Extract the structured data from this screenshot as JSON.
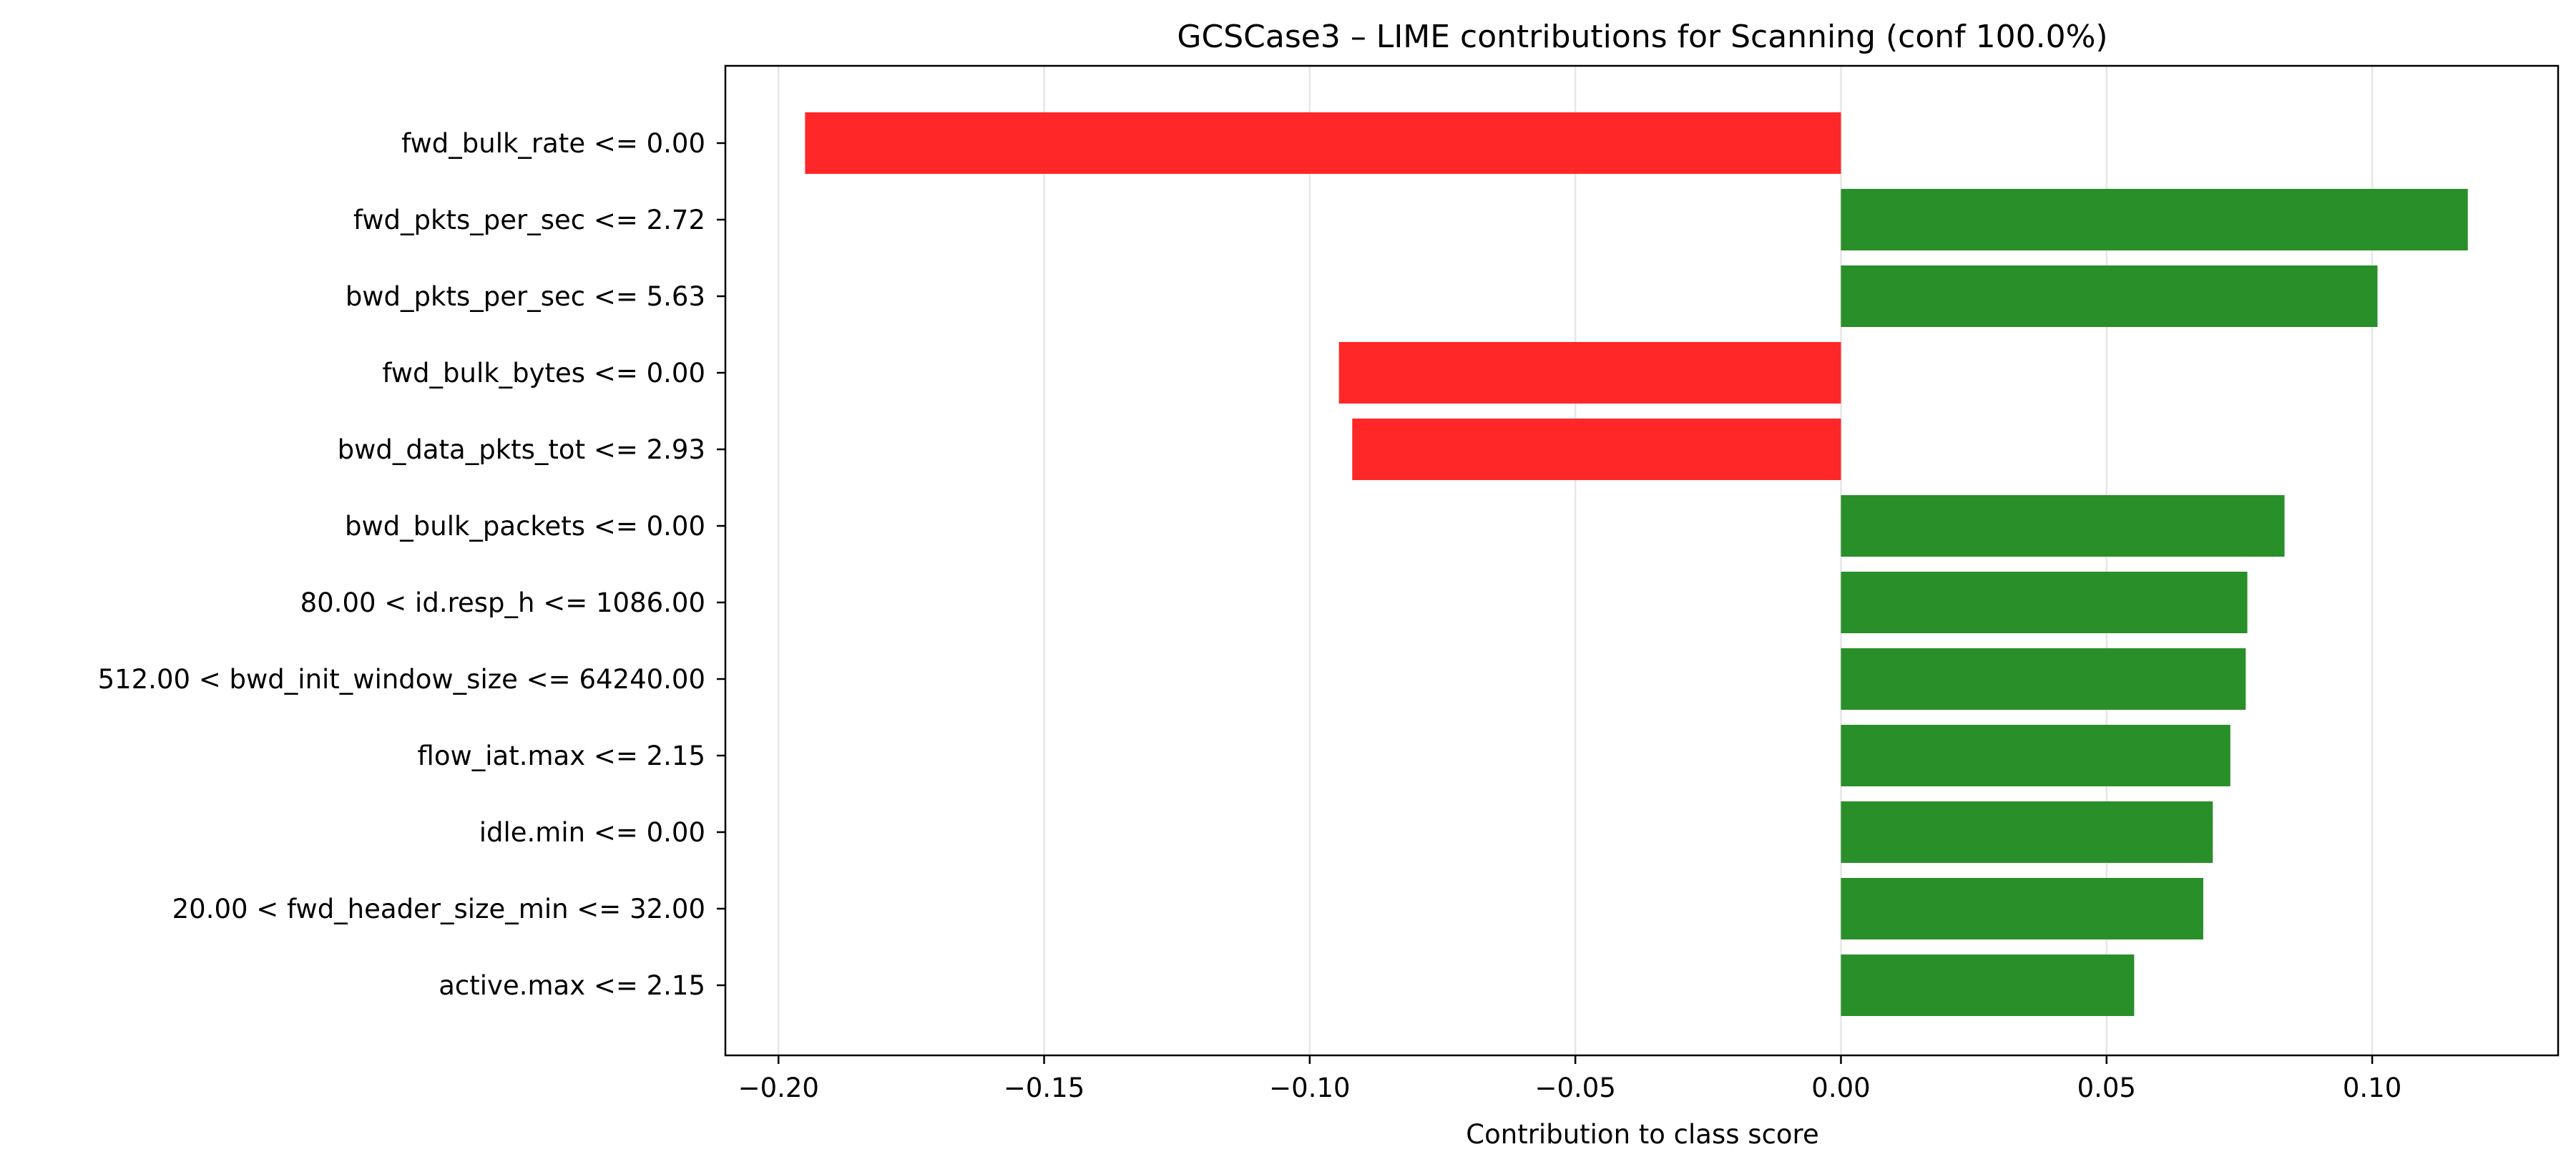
{
  "chart_data": {
    "type": "bar",
    "orientation": "horizontal",
    "title": "GCSCase3 – LIME contributions for Scanning (conf 100.0%)",
    "xlabel": "Contribution to class score",
    "ylabel": "",
    "xlim": [
      -0.21,
      0.135
    ],
    "grid": "vertical",
    "x_ticks": [
      -0.2,
      -0.15,
      -0.1,
      -0.05,
      0.0,
      0.05,
      0.1
    ],
    "x_tick_labels": [
      "−0.20",
      "−0.15",
      "−0.10",
      "−0.05",
      "0.00",
      "0.05",
      "0.10"
    ],
    "colors": {
      "positive": "#228b22",
      "negative": "#ff2020"
    },
    "categories": [
      "fwd_bulk_rate <= 0.00",
      "fwd_pkts_per_sec <= 2.72",
      "bwd_pkts_per_sec <= 5.63",
      "fwd_bulk_bytes <= 0.00",
      "bwd_data_pkts_tot <= 2.93",
      "bwd_bulk_packets <= 0.00",
      "80.00 < id.resp_h <= 1086.00",
      "512.00 < bwd_init_window_size <= 64240.00",
      "flow_iat.max <= 2.15",
      "idle.min <= 0.00",
      "20.00 < fwd_header_size_min <= 32.00",
      "active.max <= 2.15"
    ],
    "values": [
      -0.195,
      0.118,
      0.101,
      -0.0945,
      -0.092,
      0.0835,
      0.0765,
      0.0762,
      0.0733,
      0.07,
      0.0682,
      0.0552
    ]
  }
}
